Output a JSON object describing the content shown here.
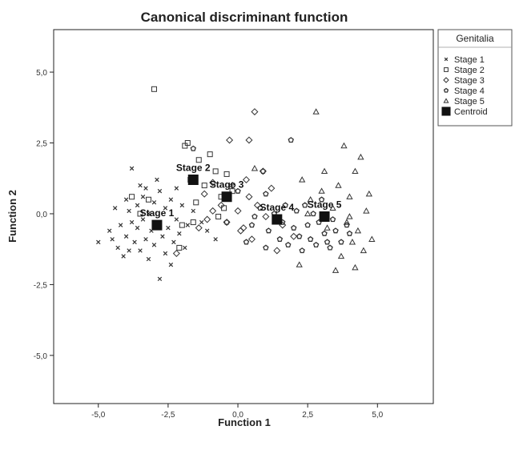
{
  "chart_data": {
    "type": "scatter",
    "title": "Canonical discriminant function",
    "xlabel": "Function 1",
    "ylabel": "Function 2",
    "xlim": [
      -6.6,
      7.0
    ],
    "ylim": [
      -6.7,
      6.5
    ],
    "xticks": [
      -5,
      -2.5,
      0,
      2.5,
      5
    ],
    "yticks": [
      -5,
      -2.5,
      0,
      2.5,
      5
    ],
    "xtick_labels": [
      "-5,0",
      "-2,5",
      "0,0",
      "2,5",
      "5,0"
    ],
    "ytick_labels": [
      "-5,0",
      "-2,5",
      "0,0",
      "2,5",
      "5,0"
    ],
    "grid": false,
    "legend": {
      "title": "Genitalia",
      "placement": "outside-top-right",
      "entries": [
        "Stage 1",
        "Stage 2",
        "Stage 3",
        "Stage 4",
        "Stage 5",
        "Centroid"
      ]
    },
    "series": [
      {
        "name": "Stage 1",
        "marker": "cross",
        "points": [
          [
            -5.0,
            -1.0
          ],
          [
            -4.6,
            -0.6
          ],
          [
            -4.5,
            -0.9
          ],
          [
            -4.3,
            -1.2
          ],
          [
            -4.2,
            -0.4
          ],
          [
            -4.1,
            -1.5
          ],
          [
            -4.0,
            -0.8
          ],
          [
            -4.0,
            0.5
          ],
          [
            -3.9,
            0.1
          ],
          [
            -3.8,
            -0.3
          ],
          [
            -3.7,
            -1.0
          ],
          [
            -3.6,
            -0.5
          ],
          [
            -3.6,
            0.3
          ],
          [
            -3.5,
            -1.3
          ],
          [
            -3.4,
            -0.2
          ],
          [
            -3.4,
            0.6
          ],
          [
            -3.3,
            -0.9
          ],
          [
            -3.2,
            -1.6
          ],
          [
            -3.2,
            0.0
          ],
          [
            -3.1,
            -0.6
          ],
          [
            -3.0,
            0.4
          ],
          [
            -3.0,
            -1.1
          ],
          [
            -2.9,
            -0.3
          ],
          [
            -2.8,
            -2.3
          ],
          [
            -2.8,
            0.8
          ],
          [
            -2.7,
            -0.8
          ],
          [
            -2.6,
            -1.4
          ],
          [
            -2.6,
            0.2
          ],
          [
            -2.5,
            -0.5
          ],
          [
            -2.4,
            0.5
          ],
          [
            -2.3,
            -1.0
          ],
          [
            -2.2,
            -0.2
          ],
          [
            -2.1,
            -0.7
          ],
          [
            -2.0,
            0.3
          ],
          [
            -1.9,
            -1.2
          ],
          [
            -1.8,
            -0.4
          ],
          [
            -3.8,
            1.6
          ],
          [
            -3.5,
            1.0
          ],
          [
            -2.9,
            1.2
          ],
          [
            -2.2,
            0.9
          ],
          [
            -3.3,
            0.9
          ],
          [
            -4.4,
            0.2
          ],
          [
            -1.1,
            -0.6
          ],
          [
            -0.8,
            -0.9
          ],
          [
            -1.6,
            0.1
          ],
          [
            -2.4,
            -1.8
          ],
          [
            -3.9,
            -1.3
          ],
          [
            -1.3,
            -0.3
          ]
        ]
      },
      {
        "name": "Stage 2",
        "marker": "square",
        "points": [
          [
            -3.8,
            0.6
          ],
          [
            -3.5,
            0.0
          ],
          [
            -3.2,
            0.5
          ],
          [
            -2.1,
            -1.2
          ],
          [
            -2.0,
            -0.4
          ],
          [
            -1.9,
            2.4
          ],
          [
            -1.8,
            2.5
          ],
          [
            -1.7,
            1.2
          ],
          [
            -1.6,
            -0.3
          ],
          [
            -1.4,
            1.9
          ],
          [
            -1.2,
            1.0
          ],
          [
            -1.0,
            2.1
          ],
          [
            -0.8,
            1.5
          ],
          [
            -0.6,
            0.6
          ],
          [
            -0.5,
            0.2
          ],
          [
            -0.4,
            1.4
          ],
          [
            -0.2,
            0.8
          ],
          [
            -3.0,
            4.4
          ],
          [
            -0.7,
            -0.1
          ],
          [
            -1.5,
            0.4
          ]
        ]
      },
      {
        "name": "Stage 3",
        "marker": "diamond",
        "points": [
          [
            -2.2,
            -1.4
          ],
          [
            -1.4,
            -0.5
          ],
          [
            -1.2,
            0.7
          ],
          [
            -0.9,
            1.1
          ],
          [
            -0.6,
            0.3
          ],
          [
            -0.4,
            -0.3
          ],
          [
            -0.3,
            2.6
          ],
          [
            -0.2,
            1.0
          ],
          [
            0.0,
            0.1
          ],
          [
            0.2,
            -0.5
          ],
          [
            0.3,
            1.2
          ],
          [
            0.4,
            0.6
          ],
          [
            0.5,
            -0.9
          ],
          [
            0.6,
            3.6
          ],
          [
            0.7,
            0.3
          ],
          [
            0.9,
            1.5
          ],
          [
            1.0,
            -0.1
          ],
          [
            1.2,
            0.9
          ],
          [
            1.4,
            -1.3
          ],
          [
            1.6,
            -0.4
          ],
          [
            0.4,
            2.6
          ],
          [
            -0.9,
            0.1
          ],
          [
            -1.1,
            -0.2
          ],
          [
            0.1,
            -0.6
          ],
          [
            2.0,
            -0.8
          ]
        ]
      },
      {
        "name": "Stage 4",
        "marker": "pentagon",
        "points": [
          [
            -1.6,
            2.3
          ],
          [
            -0.4,
            -0.3
          ],
          [
            0.0,
            0.8
          ],
          [
            0.3,
            -1.0
          ],
          [
            0.5,
            -0.4
          ],
          [
            0.6,
            -0.1
          ],
          [
            0.8,
            0.2
          ],
          [
            0.9,
            1.5
          ],
          [
            1.0,
            -1.2
          ],
          [
            1.1,
            -0.6
          ],
          [
            1.3,
            0.0
          ],
          [
            1.5,
            -0.9
          ],
          [
            1.6,
            -0.3
          ],
          [
            1.7,
            0.3
          ],
          [
            1.8,
            -1.1
          ],
          [
            1.9,
            2.6
          ],
          [
            2.0,
            -0.5
          ],
          [
            2.1,
            0.1
          ],
          [
            2.2,
            -0.8
          ],
          [
            2.3,
            -1.3
          ],
          [
            2.4,
            0.3
          ],
          [
            2.5,
            -0.4
          ],
          [
            2.6,
            -0.9
          ],
          [
            2.7,
            0.0
          ],
          [
            2.8,
            -1.1
          ],
          [
            2.9,
            -0.3
          ],
          [
            3.0,
            0.5
          ],
          [
            3.1,
            -0.7
          ],
          [
            3.2,
            -1.0
          ],
          [
            3.4,
            -0.2
          ],
          [
            3.5,
            -0.6
          ],
          [
            3.7,
            -1.0
          ],
          [
            3.9,
            -0.4
          ],
          [
            4.0,
            -0.7
          ],
          [
            3.3,
            -1.2
          ],
          [
            1.0,
            0.7
          ]
        ]
      },
      {
        "name": "Stage 5",
        "marker": "triangle",
        "points": [
          [
            0.6,
            1.6
          ],
          [
            2.2,
            -1.8
          ],
          [
            2.3,
            1.2
          ],
          [
            2.6,
            0.5
          ],
          [
            2.8,
            3.6
          ],
          [
            3.0,
            0.8
          ],
          [
            3.2,
            -0.5
          ],
          [
            3.4,
            0.2
          ],
          [
            3.6,
            1.0
          ],
          [
            3.7,
            -1.5
          ],
          [
            3.8,
            2.4
          ],
          [
            3.9,
            -0.3
          ],
          [
            4.0,
            0.6
          ],
          [
            4.1,
            -1.0
          ],
          [
            4.2,
            1.5
          ],
          [
            4.3,
            -0.6
          ],
          [
            4.4,
            2.0
          ],
          [
            4.5,
            -1.3
          ],
          [
            4.6,
            0.1
          ],
          [
            4.8,
            -0.9
          ],
          [
            4.2,
            -1.9
          ],
          [
            3.5,
            -2.0
          ],
          [
            4.7,
            0.7
          ],
          [
            3.1,
            1.5
          ],
          [
            2.5,
            0.0
          ],
          [
            4.0,
            -0.1
          ]
        ]
      }
    ],
    "centroids": [
      {
        "label": "Stage 1",
        "x": -2.9,
        "y": -0.4
      },
      {
        "label": "Stage 2",
        "x": -1.6,
        "y": 1.2
      },
      {
        "label": "Stage 3",
        "x": -0.4,
        "y": 0.6
      },
      {
        "label": "Stage 4",
        "x": 1.4,
        "y": -0.2
      },
      {
        "label": "Stage 5",
        "x": 3.1,
        "y": -0.1
      }
    ]
  }
}
